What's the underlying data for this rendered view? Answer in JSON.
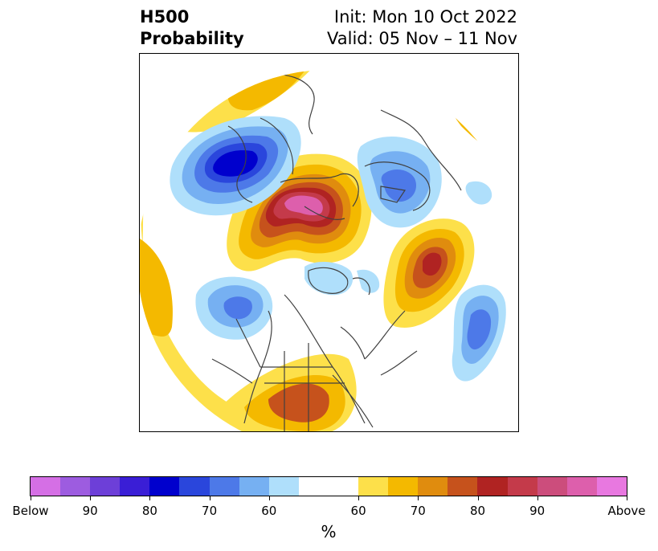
{
  "title": {
    "variable": "H500",
    "quantity": "Probability",
    "init": "Init: Mon 10 Oct 2022",
    "valid": "Valid: 05 Nov – 11 Nov"
  },
  "colorbar": {
    "unit": "%",
    "colors": [
      "#d56fe5",
      "#9d5ce0",
      "#6d3fd8",
      "#3a1ed6",
      "#0000cd",
      "#2a46dc",
      "#4d79e8",
      "#76b0f2",
      "#afdffb",
      "#ffffff",
      "#fde04a",
      "#f4b900",
      "#e08c0e",
      "#c6521c",
      "#b02322",
      "#c43a4a",
      "#cc4d7c",
      "#dd5fac",
      "#e878e0"
    ],
    "tick_labels": [
      "Below",
      "90",
      "80",
      "70",
      "60",
      "60",
      "70",
      "80",
      "90",
      "Above"
    ]
  },
  "map_style": {
    "land_outline": "#404040",
    "below_colors": [
      "#afdffb",
      "#76b0f2",
      "#4d79e8",
      "#2a46dc",
      "#0000cd"
    ],
    "above_colors": [
      "#fde04a",
      "#f4b900",
      "#e08c0e",
      "#c6521c",
      "#b02322",
      "#c43a4a",
      "#cc4d7c",
      "#dd5fac"
    ]
  }
}
